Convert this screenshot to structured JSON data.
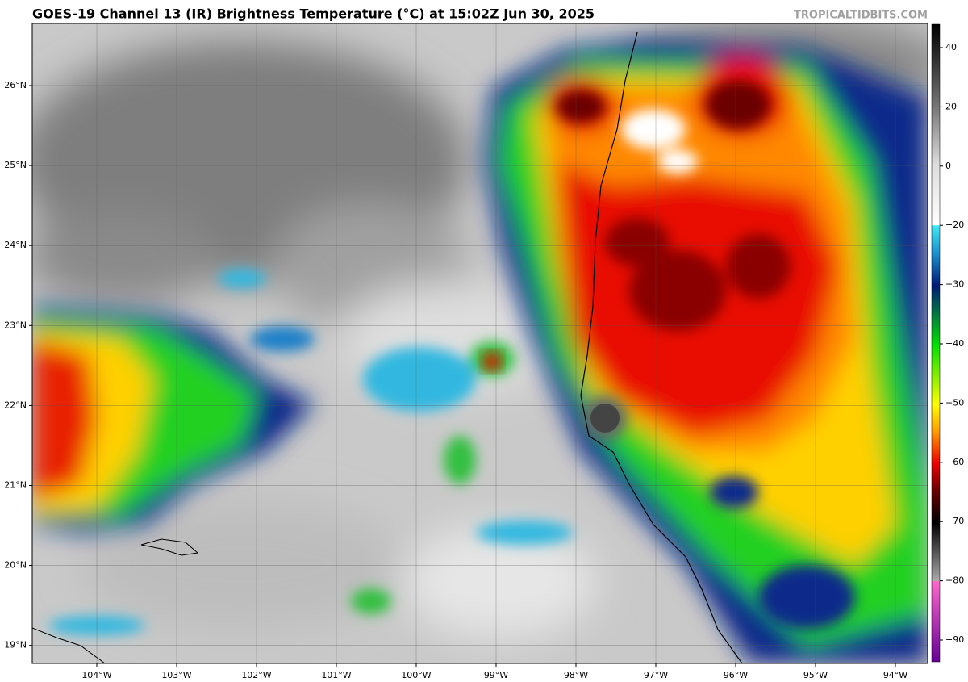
{
  "header": {
    "title": "GOES-19 Channel 13 (IR) Brightness Temperature (°C) at 15:02Z Jun 30, 2025",
    "watermark": "TROPICALTIDBITS.COM"
  },
  "map": {
    "lon_labels": [
      "104°W",
      "103°W",
      "102°W",
      "101°W",
      "100°W",
      "99°W",
      "98°W",
      "97°W",
      "96°W",
      "95°W",
      "94°W"
    ],
    "lat_labels": [
      "26°N",
      "25°N",
      "24°N",
      "23°N",
      "22°N",
      "21°N",
      "20°N",
      "19°N"
    ]
  },
  "colorbar": {
    "ticks": [
      40,
      20,
      0,
      {
        "value": -20,
        "label": "−20"
      },
      {
        "value": -30,
        "label": "−30"
      },
      {
        "value": -40,
        "label": "−40"
      },
      {
        "value": -50,
        "label": "−50"
      },
      {
        "value": -60,
        "label": "−60"
      },
      {
        "value": -70,
        "label": "−70"
      },
      {
        "value": -80,
        "label": "−80"
      },
      {
        "value": -90,
        "label": "−90"
      }
    ]
  }
}
